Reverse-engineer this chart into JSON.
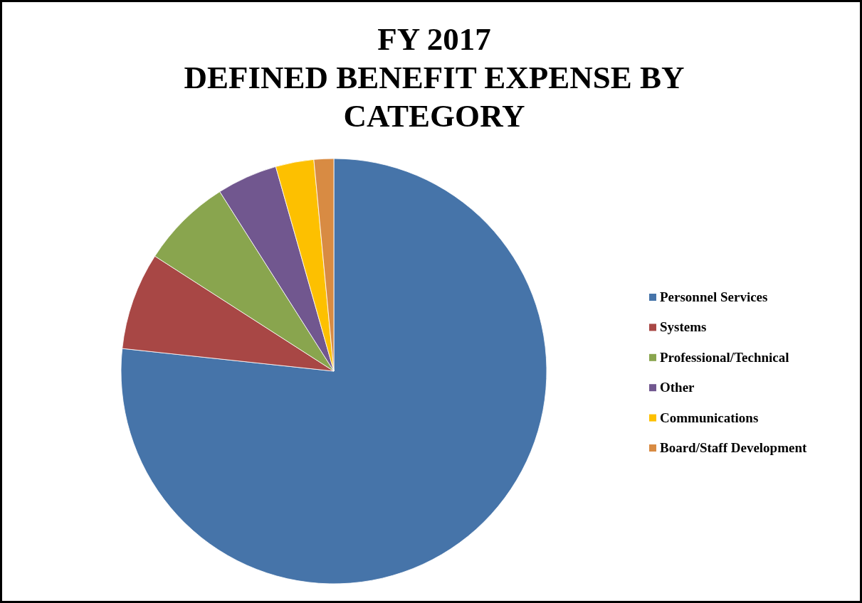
{
  "chart_data": {
    "type": "pie",
    "title": "FY 2017\nDEFINED BENEFIT EXPENSE BY\nCATEGORY",
    "categories": [
      "Personnel Services",
      "Systems",
      "Professional/Technical",
      "Other",
      "Communications",
      "Board/Staff Development"
    ],
    "values": [
      76.7,
      7.4,
      6.9,
      4.6,
      2.9,
      1.5
    ],
    "colors": [
      "#4674a9",
      "#a84745",
      "#89a54e",
      "#71578f",
      "#fdc000",
      "#d88b43"
    ],
    "legend": "right"
  }
}
